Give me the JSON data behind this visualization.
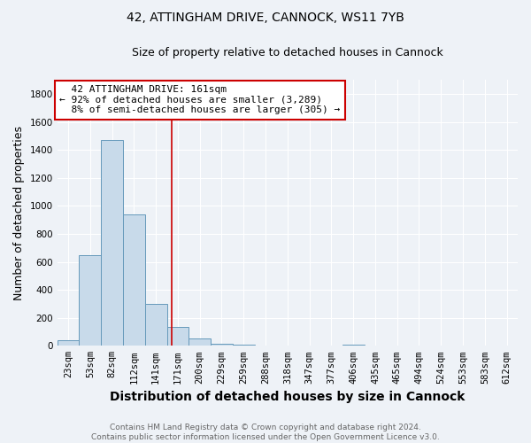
{
  "title_line1": "42, ATTINGHAM DRIVE, CANNOCK, WS11 7YB",
  "title_line2": "Size of property relative to detached houses in Cannock",
  "xlabel": "Distribution of detached houses by size in Cannock",
  "ylabel": "Number of detached properties",
  "bar_labels": [
    "23sqm",
    "53sqm",
    "82sqm",
    "112sqm",
    "141sqm",
    "171sqm",
    "200sqm",
    "229sqm",
    "259sqm",
    "288sqm",
    "318sqm",
    "347sqm",
    "377sqm",
    "406sqm",
    "435sqm",
    "465sqm",
    "494sqm",
    "524sqm",
    "553sqm",
    "583sqm",
    "612sqm"
  ],
  "bar_values": [
    40,
    650,
    1470,
    940,
    300,
    135,
    50,
    15,
    8,
    5,
    2,
    2,
    2,
    8,
    1,
    1,
    1,
    0,
    0,
    0,
    0
  ],
  "bar_color": "#c8daea",
  "bar_edge_color": "#6699bb",
  "vline_x": 4.72,
  "vline_color": "#cc0000",
  "annotation_text": "  42 ATTINGHAM DRIVE: 161sqm\n← 92% of detached houses are smaller (3,289)\n  8% of semi-detached houses are larger (305) →",
  "annotation_box_color": "white",
  "annotation_box_edge_color": "#cc0000",
  "ylim": [
    0,
    1900
  ],
  "yticks": [
    0,
    200,
    400,
    600,
    800,
    1000,
    1200,
    1400,
    1600,
    1800
  ],
  "footer_line1": "Contains HM Land Registry data © Crown copyright and database right 2024.",
  "footer_line2": "Contains public sector information licensed under the Open Government Licence v3.0.",
  "background_color": "#eef2f7",
  "grid_color": "white",
  "title_fontsize": 10,
  "subtitle_fontsize": 9,
  "axis_label_fontsize": 9,
  "tick_fontsize": 7.5,
  "annotation_fontsize": 8,
  "footer_fontsize": 6.5
}
